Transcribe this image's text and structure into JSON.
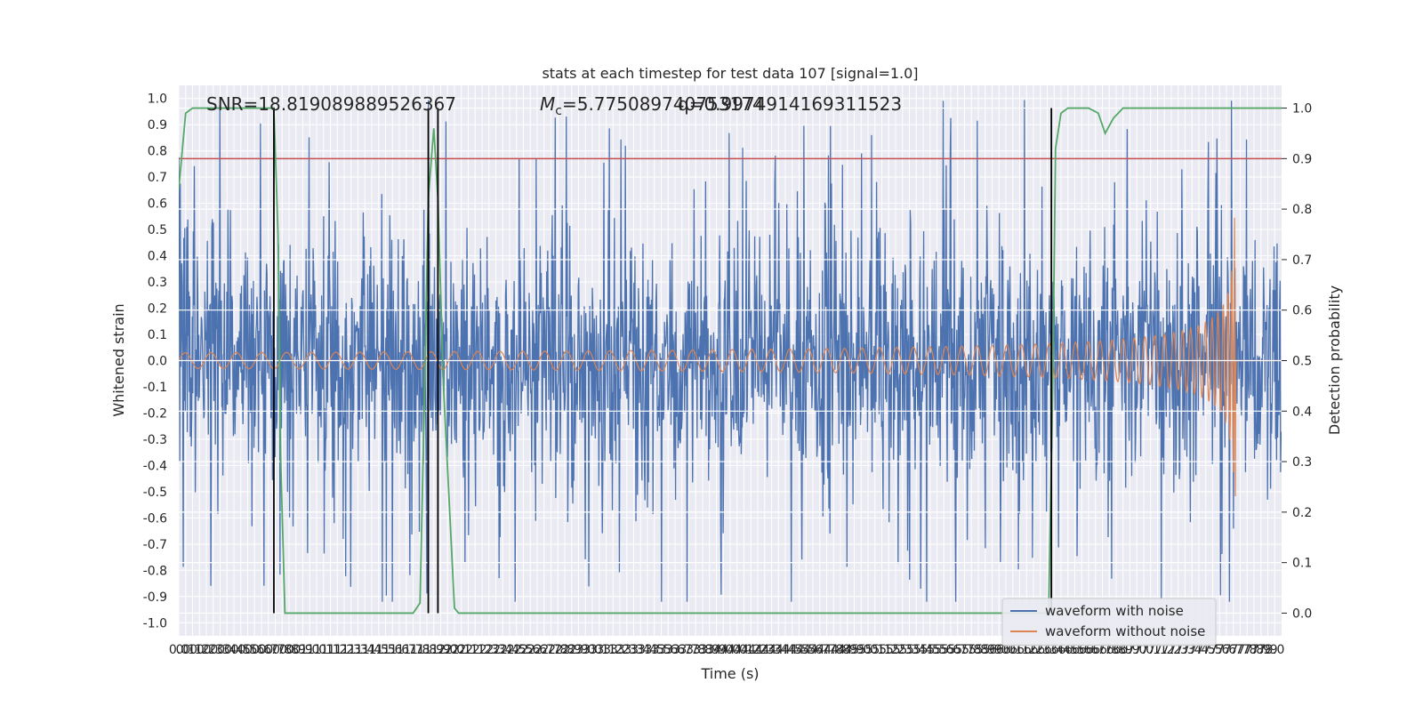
{
  "chart_data": {
    "type": "line",
    "title": "stats at each timestep for test data 107 [signal=1.0]",
    "xlabel": "Time (s)",
    "ylabel_left": "Whitened strain",
    "ylabel_right": "Detection probability",
    "xlim": [
      0.0,
      8.0
    ],
    "ylim_left": [
      -1.05,
      1.05
    ],
    "ylim_right": [
      -0.045,
      1.045
    ],
    "x_tick_step": 0.05,
    "left_ticks": [
      1.0,
      0.9,
      0.8,
      0.7,
      0.6,
      0.5,
      0.4,
      0.3,
      0.2,
      0.1,
      0.0,
      -0.1,
      -0.2,
      -0.3,
      -0.4,
      -0.5,
      -0.6,
      -0.7,
      -0.8,
      -0.9,
      -1.0
    ],
    "right_ticks": [
      1.0,
      0.9,
      0.8,
      0.7,
      0.6,
      0.5,
      0.4,
      0.3,
      0.2,
      0.1,
      0.0
    ],
    "grid": true,
    "legend_position": "lower-right",
    "annotations": {
      "snr": "SNR=18.819089889526367",
      "mc_symbol": "M",
      "mc_sub": "c",
      "mc_value": "=5.775089740753174",
      "q_text": "q=0.9974914169311523"
    },
    "threshold": {
      "probability": 0.9,
      "color": "#c44e52"
    },
    "vertical_markers_s": [
      0.69,
      1.81,
      1.88,
      6.33
    ],
    "series": [
      {
        "name": "waveform with noise",
        "color": "#4c72b0",
        "axis": "left",
        "kind": "noise",
        "typical_range": [
          -0.55,
          0.55
        ],
        "extreme_range": [
          -0.92,
          1.0
        ]
      },
      {
        "name": "waveform without noise",
        "color": "#dd8452",
        "axis": "left",
        "kind": "chirp",
        "merger_time_s": 7.67,
        "amp_start": 0.03,
        "amp_peak": 0.57,
        "amp_min_peak": -0.47
      },
      {
        "color": "#55a868",
        "axis": "right",
        "kind": "detection_probability",
        "x": [
          0.0,
          0.05,
          0.1,
          0.2,
          0.3,
          0.5,
          0.69,
          0.72,
          0.74,
          0.77,
          1.0,
          1.5,
          1.7,
          1.75,
          1.78,
          1.81,
          1.85,
          1.88,
          1.92,
          2.0,
          2.03,
          2.1,
          2.5,
          3.0,
          4.0,
          5.0,
          6.0,
          6.31,
          6.34,
          6.36,
          6.4,
          6.45,
          6.5,
          6.6,
          6.67,
          6.72,
          6.78,
          6.85,
          6.9,
          7.0,
          7.5,
          8.0
        ],
        "y": [
          0.84,
          0.99,
          1.0,
          1.0,
          1.0,
          1.0,
          1.0,
          0.75,
          0.3,
          0.0,
          0.0,
          0.0,
          0.0,
          0.02,
          0.4,
          0.82,
          0.96,
          0.82,
          0.45,
          0.01,
          0.0,
          0.0,
          0.0,
          0.0,
          0.0,
          0.0,
          0.0,
          0.0,
          0.45,
          0.92,
          0.99,
          1.0,
          1.0,
          1.0,
          0.99,
          0.95,
          0.98,
          1.0,
          1.0,
          1.0,
          1.0,
          1.0
        ]
      }
    ]
  }
}
